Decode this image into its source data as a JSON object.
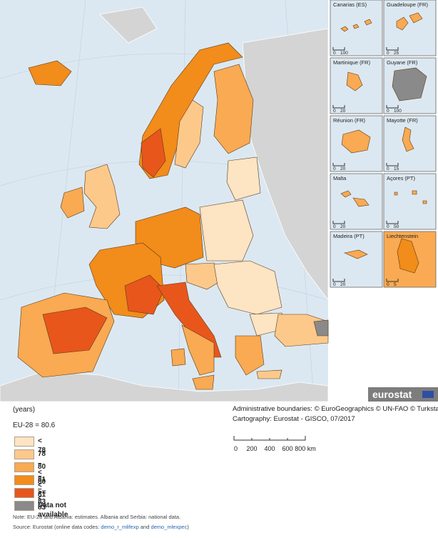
{
  "insets": [
    {
      "label": "Canarias (ES)",
      "scale": [
        "0",
        "100"
      ]
    },
    {
      "label": "Guadeloupe (FR)",
      "scale": [
        "0",
        "25"
      ]
    },
    {
      "label": "Martinique (FR)",
      "scale": [
        "0",
        "20"
      ]
    },
    {
      "label": "Guyane (FR)",
      "scale": [
        "0",
        "100"
      ]
    },
    {
      "label": "Réunion (FR)",
      "scale": [
        "0",
        "20"
      ]
    },
    {
      "label": "Mayotte (FR)",
      "scale": [
        "0",
        "15"
      ]
    },
    {
      "label": "Malta",
      "scale": [
        "0",
        "20"
      ]
    },
    {
      "label": "Açores (PT)",
      "scale": [
        "0",
        "50"
      ]
    },
    {
      "label": "Madeira (PT)",
      "scale": [
        "0",
        "20"
      ]
    },
    {
      "label": "Liechtenstein",
      "scale": [
        "0",
        "5"
      ]
    }
  ],
  "logo": "eurostat",
  "attribution": [
    "Administrative boundaries: © EuroGeographics © UN-FAO © Turkstat",
    "Cartography: Eurostat - GISCO, 07/2017"
  ],
  "scale_bar": [
    "0",
    "200",
    "400",
    "600",
    "800 km"
  ],
  "legend": {
    "unit": "(years)",
    "reference": "EU-28 = 80.6",
    "items": [
      {
        "label": "< 78",
        "color": "#fde4c2"
      },
      {
        "label": "78 – < 80",
        "color": "#fcc98b"
      },
      {
        "label": "80 – < 81",
        "color": "#f9aa52"
      },
      {
        "label": "81 – < 83",
        "color": "#f28c1a"
      },
      {
        "label": ">= 83",
        "color": "#e8561c"
      },
      {
        "label": "Data not available",
        "color": "#8a8a8a"
      }
    ]
  },
  "note": "Note: EU-28 and Albania: estimates. Albania and Serbia: national data.",
  "source": {
    "prefix": "Source: Eurostat (online data codes: ",
    "links": [
      "demo_r_mlifexp",
      "demo_mlexpec"
    ],
    "joiner": " and ",
    "suffix": ")"
  }
}
